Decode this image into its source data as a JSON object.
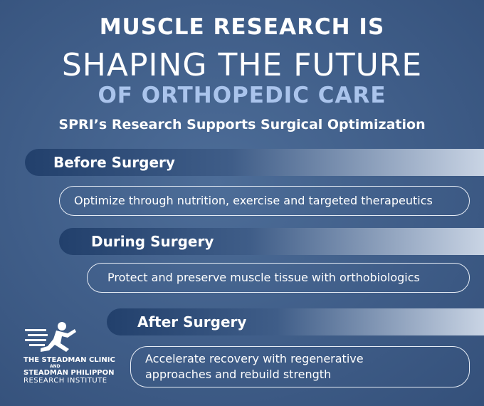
{
  "header": {
    "line1": "MUSCLE RESEARCH IS",
    "line2": "SHAPING THE FUTURE",
    "line3": "OF ORTHOPEDIC CARE",
    "subtitle": "SPRI’s Research Supports Surgical Optimization"
  },
  "stages": [
    {
      "heading": "Before Surgery",
      "description": "Optimize through nutrition, exercise and targeted therapeutics"
    },
    {
      "heading": "During Surgery",
      "description": "Protect and preserve muscle tissue with orthobiologics"
    },
    {
      "heading": "After Surgery",
      "description": "Accelerate recovery with regenerative approaches and rebuild strength"
    }
  ],
  "logo": {
    "line1": "THE STEADMAN CLINIC",
    "line2": "AND",
    "line3": "STEADMAN PHILIPPON",
    "line4": "RESEARCH INSTITUTE"
  }
}
